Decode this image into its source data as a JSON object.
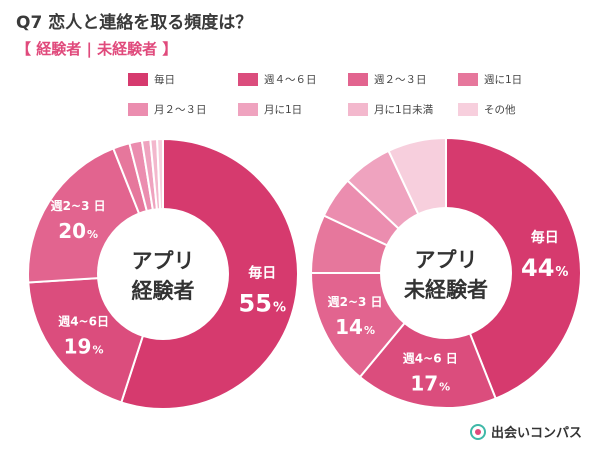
{
  "header": {
    "q_number": "Q7",
    "question": "恋人と連絡を取る頻度は？",
    "subtitle": "【 経験者 | 未経験者 】"
  },
  "colors": {
    "palette": [
      "#d63a6e",
      "#db4d7d",
      "#e2648f",
      "#e6779c",
      "#eb8daf",
      "#efa3bf",
      "#f3b8cd",
      "#f7cfdd"
    ],
    "title": "#3a3a3a",
    "subtitle": "#e04a7c"
  },
  "legend": {
    "items": [
      "毎日",
      "週４〜６日",
      "週２〜３日",
      "週に1日",
      "月２〜３日",
      "月に1日",
      "月に1日未満",
      "その他"
    ]
  },
  "chart_data": [
    {
      "type": "pie",
      "center_label": [
        "アプリ",
        "経験者"
      ],
      "categories": [
        "毎日",
        "週４〜６日",
        "週２〜３日",
        "週に1日",
        "月２〜３日",
        "月に1日",
        "月に1日未満",
        "その他"
      ],
      "values": [
        55,
        19,
        20,
        2,
        1.5,
        1,
        0.8,
        0.7
      ],
      "labels": [
        {
          "index": 0,
          "name": "毎日",
          "value": "55",
          "unit": "%"
        },
        {
          "index": 1,
          "name": "週4~6日",
          "value": "19",
          "unit": "%"
        },
        {
          "index": 2,
          "name": "週2~3 日",
          "value": "20",
          "unit": "%"
        }
      ]
    },
    {
      "type": "pie",
      "center_label": [
        "アプリ",
        "未経験者"
      ],
      "categories": [
        "毎日",
        "週４〜６日",
        "週２〜３日",
        "週に1日",
        "月２〜３日",
        "月に1日",
        "月に1日未満",
        "その他"
      ],
      "values": [
        44,
        17,
        14,
        7,
        5,
        6,
        0,
        7
      ],
      "labels": [
        {
          "index": 0,
          "name": "毎日",
          "value": "44",
          "unit": "%"
        },
        {
          "index": 1,
          "name": "週4~6 日",
          "value": "17",
          "unit": "%"
        },
        {
          "index": 2,
          "name": "週2~3 日",
          "value": "14",
          "unit": "%"
        }
      ]
    }
  ],
  "brand": {
    "name": "出会いコンパス",
    "icon": "compass-icon"
  }
}
